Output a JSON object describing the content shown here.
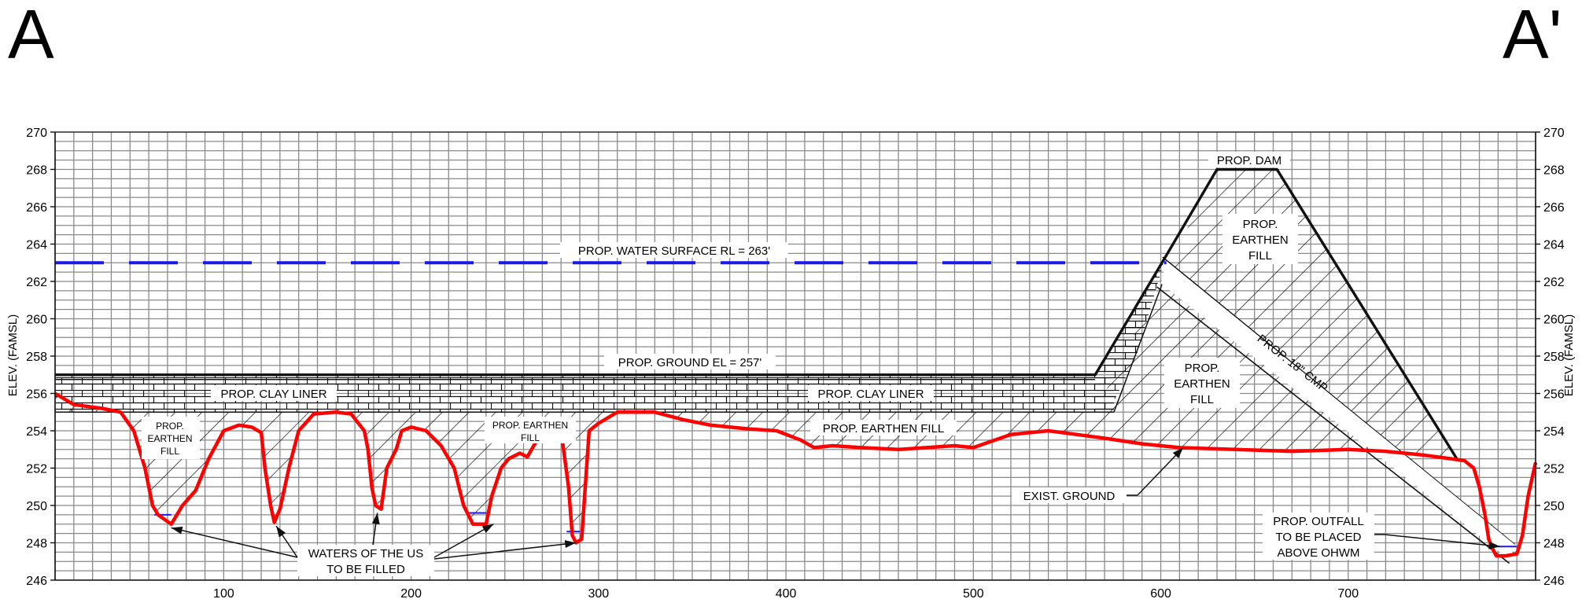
{
  "section": {
    "start_label": "A",
    "end_label": "A'"
  },
  "axes": {
    "y_title": "ELEV. (FAMSL)",
    "y_ticks": [
      "246",
      "248",
      "250",
      "252",
      "254",
      "256",
      "258",
      "260",
      "262",
      "264",
      "266",
      "268",
      "270"
    ],
    "x_ticks": [
      "100",
      "200",
      "300",
      "400",
      "500",
      "600",
      "700"
    ]
  },
  "annotations": {
    "water_surface": "PROP. WATER SURFACE RL = 263'",
    "ground_el": "PROP. GROUND EL = 257'",
    "clay_liner": "PROP. CLAY LINER",
    "earthen_fill": "PROP. EARTHEN FILL",
    "earthen_fill_left": [
      "PROP.",
      "EARTHEN",
      "FILL"
    ],
    "earthen_fill_mid": [
      "PROP. EARTHEN",
      "FILL"
    ],
    "dam": "PROP. DAM",
    "dam_fill_upper": [
      "PROP.",
      "EARTHEN",
      "FILL"
    ],
    "dam_fill_lower": [
      "PROP.",
      "EARTHEN",
      "FILL"
    ],
    "cmp": "PROP. 18\" CMP",
    "exist_ground": "EXIST. GROUND",
    "waters": [
      "WATERS OF THE US",
      "TO BE FILLED"
    ],
    "outfall": [
      "PROP. OUTFALL",
      "TO BE PLACED",
      "ABOVE OHWM"
    ]
  },
  "chart_data": {
    "type": "line",
    "x_range": [
      10,
      800
    ],
    "y_range": [
      246,
      270
    ],
    "grid": true,
    "series": [
      {
        "name": "EXIST. GROUND",
        "color": "#ff0000",
        "points": [
          [
            10,
            256
          ],
          [
            20,
            255.4
          ],
          [
            35,
            255.2
          ],
          [
            45,
            255
          ],
          [
            52,
            254
          ],
          [
            58,
            252
          ],
          [
            62,
            250
          ],
          [
            65,
            249.5
          ],
          [
            72,
            249
          ],
          [
            78,
            250
          ],
          [
            85,
            250.8
          ],
          [
            92,
            252.5
          ],
          [
            100,
            254
          ],
          [
            108,
            254.3
          ],
          [
            115,
            254.2
          ],
          [
            120,
            253.9
          ],
          [
            122,
            252
          ],
          [
            125,
            250
          ],
          [
            127,
            249.1
          ],
          [
            130,
            249.8
          ],
          [
            135,
            252.1
          ],
          [
            140,
            254
          ],
          [
            148,
            254.9
          ],
          [
            160,
            255
          ],
          [
            168,
            254.9
          ],
          [
            175,
            254
          ],
          [
            177,
            253
          ],
          [
            179,
            251
          ],
          [
            181,
            250
          ],
          [
            184,
            249.8
          ],
          [
            187,
            252
          ],
          [
            192,
            253
          ],
          [
            195,
            254
          ],
          [
            200,
            254.2
          ],
          [
            208,
            254
          ],
          [
            216,
            253.2
          ],
          [
            223,
            252
          ],
          [
            228,
            250
          ],
          [
            233,
            249
          ],
          [
            240,
            249
          ],
          [
            243,
            250.5
          ],
          [
            248,
            252
          ],
          [
            252,
            252.5
          ],
          [
            258,
            252.8
          ],
          [
            262,
            252.6
          ],
          [
            270,
            254
          ],
          [
            275,
            254
          ],
          [
            280,
            254
          ],
          [
            284,
            251
          ],
          [
            286,
            248.4
          ],
          [
            288,
            248
          ],
          [
            291,
            248.2
          ],
          [
            295,
            254
          ],
          [
            300,
            254.4
          ],
          [
            310,
            255
          ],
          [
            320,
            255
          ],
          [
            330,
            255
          ],
          [
            345,
            254.6
          ],
          [
            360,
            254.3
          ],
          [
            380,
            254.1
          ],
          [
            395,
            254
          ],
          [
            408,
            253.5
          ],
          [
            415,
            253.1
          ],
          [
            425,
            253.2
          ],
          [
            440,
            253.1
          ],
          [
            460,
            253
          ],
          [
            475,
            253.1
          ],
          [
            490,
            253.2
          ],
          [
            500,
            253.1
          ],
          [
            520,
            253.8
          ],
          [
            540,
            254
          ],
          [
            555,
            253.8
          ],
          [
            570,
            253.6
          ],
          [
            590,
            253.3
          ],
          [
            610,
            253.1
          ],
          [
            640,
            253
          ],
          [
            670,
            252.9
          ],
          [
            700,
            253
          ],
          [
            720,
            252.9
          ],
          [
            740,
            252.7
          ],
          [
            755,
            252.5
          ],
          [
            762,
            252.4
          ],
          [
            767,
            252
          ],
          [
            770,
            251
          ],
          [
            773,
            249.5
          ],
          [
            775,
            248.2
          ],
          [
            777,
            247.7
          ],
          [
            779,
            247.3
          ],
          [
            784,
            247.3
          ],
          [
            790,
            247.4
          ],
          [
            793,
            248.4
          ],
          [
            796,
            250.5
          ],
          [
            800,
            252.3
          ]
        ]
      }
    ]
  }
}
